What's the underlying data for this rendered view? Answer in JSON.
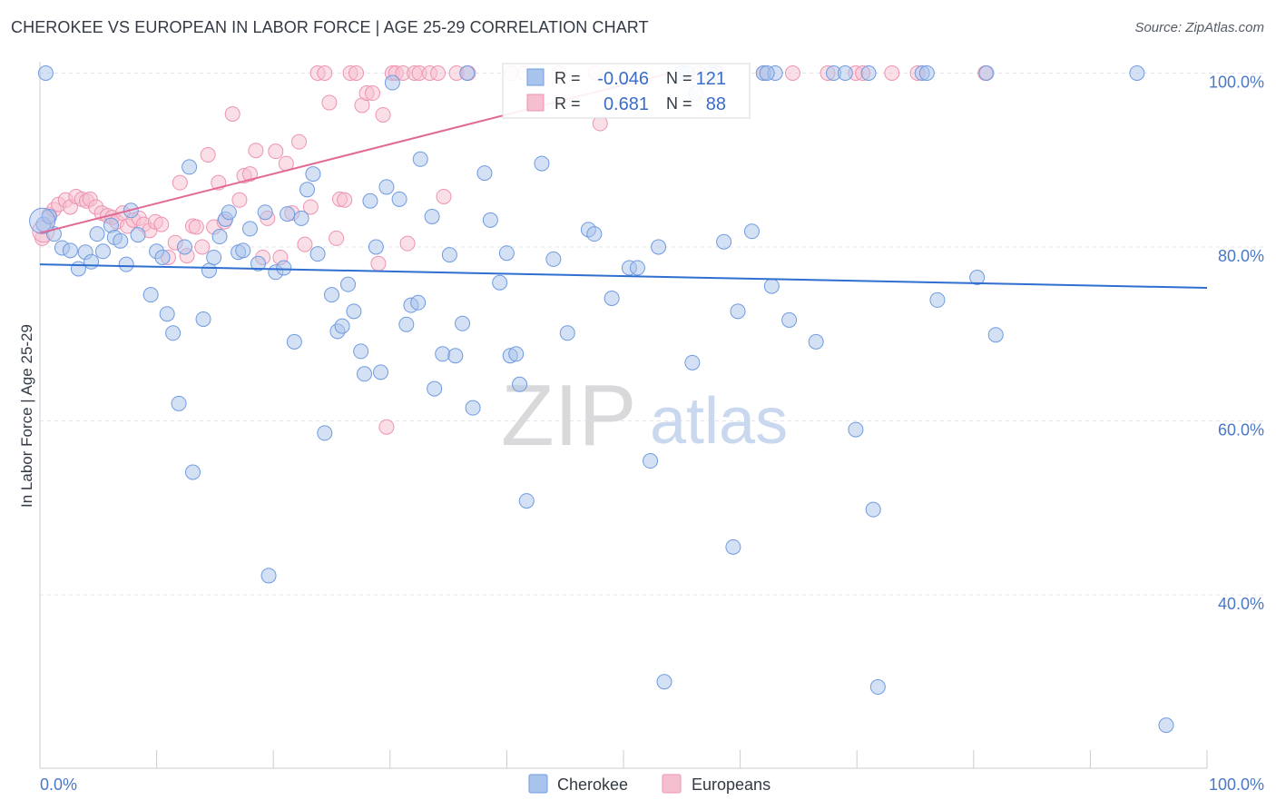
{
  "title": "CHEROKEE VS EUROPEAN IN LABOR FORCE | AGE 25-29 CORRELATION CHART",
  "source": "Source: ZipAtlas.com",
  "watermark": {
    "zip": "ZIP",
    "atlas": "atlas"
  },
  "colors": {
    "cherokee_fill": "#a9c4ec",
    "cherokee_stroke": "#6f9be0",
    "cherokee_line": "#2f6fd0",
    "europeans_fill": "#f6bfd0",
    "europeans_stroke": "#ee93b1",
    "europeans_line": "#e06a94",
    "tick_text": "#4a78c8",
    "grid": "#e3e5ea"
  },
  "chart_data": {
    "type": "scatter",
    "title": "CHEROKEE VS EUROPEAN IN LABOR FORCE | AGE 25-29 CORRELATION CHART",
    "xlabel": "",
    "ylabel": "In Labor Force | Age 25-29",
    "xlim": [
      0,
      100
    ],
    "ylim": [
      20,
      102
    ],
    "x_tick_labels": [
      "0.0%",
      "100.0%"
    ],
    "y_ticks": [
      40,
      60,
      80,
      100
    ],
    "y_tick_labels": [
      "40.0%",
      "60.0%",
      "80.0%",
      "100.0%"
    ],
    "grid": "horizontal dashed",
    "legend_position": "bottom-center",
    "stats_box": [
      {
        "series": "Cherokee",
        "r_label": "R =",
        "r": "-0.046",
        "n_label": "N =",
        "n": "121"
      },
      {
        "series": "Europeans",
        "r_label": "R =",
        "r": "0.681",
        "n_label": "N =",
        "n": "88"
      }
    ],
    "series": [
      {
        "name": "Cherokee",
        "trend": {
          "x": [
            0,
            100
          ],
          "y": [
            78.0,
            75.3
          ]
        },
        "points": [
          [
            0.3,
            82.6
          ],
          [
            0.8,
            83.5
          ],
          [
            1.2,
            81.5
          ],
          [
            1.9,
            79.9
          ],
          [
            2.6,
            79.6
          ],
          [
            3.3,
            77.5
          ],
          [
            3.9,
            79.4
          ],
          [
            4.4,
            78.3
          ],
          [
            4.9,
            81.5
          ],
          [
            5.4,
            79.5
          ],
          [
            6.1,
            82.5
          ],
          [
            6.4,
            81.1
          ],
          [
            6.9,
            80.7
          ],
          [
            7.4,
            78.0
          ],
          [
            7.8,
            84.2
          ],
          [
            8.4,
            81.4
          ],
          [
            9.5,
            74.5
          ],
          [
            10.0,
            79.5
          ],
          [
            10.5,
            78.8
          ],
          [
            10.9,
            72.3
          ],
          [
            11.4,
            70.1
          ],
          [
            11.9,
            62.0
          ],
          [
            12.4,
            80.0
          ],
          [
            12.8,
            89.2
          ],
          [
            13.1,
            54.1
          ],
          [
            14.0,
            71.7
          ],
          [
            14.5,
            77.3
          ],
          [
            14.9,
            78.8
          ],
          [
            15.4,
            81.2
          ],
          [
            15.9,
            83.2
          ],
          [
            16.2,
            84.0
          ],
          [
            17.0,
            79.4
          ],
          [
            17.4,
            79.6
          ],
          [
            18.0,
            82.1
          ],
          [
            18.7,
            78.1
          ],
          [
            19.3,
            84.0
          ],
          [
            19.6,
            42.2
          ],
          [
            20.2,
            77.1
          ],
          [
            20.9,
            77.6
          ],
          [
            21.2,
            83.8
          ],
          [
            21.8,
            69.1
          ],
          [
            22.4,
            83.3
          ],
          [
            22.9,
            86.6
          ],
          [
            23.4,
            88.4
          ],
          [
            23.8,
            79.2
          ],
          [
            24.4,
            58.6
          ],
          [
            25.0,
            74.5
          ],
          [
            25.5,
            70.3
          ],
          [
            25.9,
            70.9
          ],
          [
            26.4,
            75.7
          ],
          [
            26.9,
            72.6
          ],
          [
            27.5,
            68.0
          ],
          [
            27.8,
            65.4
          ],
          [
            28.3,
            85.3
          ],
          [
            28.8,
            80.0
          ],
          [
            29.2,
            65.6
          ],
          [
            29.7,
            86.9
          ],
          [
            30.2,
            98.9
          ],
          [
            30.8,
            85.5
          ],
          [
            31.4,
            71.1
          ],
          [
            31.8,
            73.3
          ],
          [
            32.4,
            73.6
          ],
          [
            32.6,
            90.1
          ],
          [
            33.6,
            83.5
          ],
          [
            33.8,
            63.7
          ],
          [
            34.5,
            67.7
          ],
          [
            35.1,
            79.1
          ],
          [
            35.6,
            67.5
          ],
          [
            36.2,
            71.2
          ],
          [
            36.6,
            100.0
          ],
          [
            37.1,
            61.5
          ],
          [
            38.1,
            88.5
          ],
          [
            38.6,
            83.1
          ],
          [
            39.4,
            75.9
          ],
          [
            40.0,
            79.3
          ],
          [
            40.3,
            67.5
          ],
          [
            40.8,
            67.7
          ],
          [
            41.1,
            64.2
          ],
          [
            41.7,
            50.8
          ],
          [
            43.0,
            89.6
          ],
          [
            44.0,
            78.6
          ],
          [
            45.2,
            70.1
          ],
          [
            47.0,
            82.0
          ],
          [
            47.5,
            81.5
          ],
          [
            49.0,
            74.1
          ],
          [
            50.5,
            77.6
          ],
          [
            51.2,
            77.6
          ],
          [
            52.3,
            55.4
          ],
          [
            53.0,
            80.0
          ],
          [
            53.5,
            30.0
          ],
          [
            55.0,
            100.0
          ],
          [
            55.5,
            100.0
          ],
          [
            55.9,
            66.7
          ],
          [
            56.2,
            97.7
          ],
          [
            57.5,
            100.0
          ],
          [
            58.0,
            100.0
          ],
          [
            58.6,
            80.6
          ],
          [
            59.4,
            45.5
          ],
          [
            59.8,
            72.6
          ],
          [
            61.0,
            81.8
          ],
          [
            62.0,
            100.0
          ],
          [
            62.7,
            75.5
          ],
          [
            63.0,
            100.0
          ],
          [
            64.2,
            71.6
          ],
          [
            66.5,
            69.1
          ],
          [
            68.0,
            100.0
          ],
          [
            69.0,
            100.0
          ],
          [
            69.9,
            59.0
          ],
          [
            71.0,
            100.0
          ],
          [
            71.4,
            49.8
          ],
          [
            71.8,
            29.4
          ],
          [
            75.6,
            100.0
          ],
          [
            76.0,
            100.0
          ],
          [
            76.9,
            73.9
          ],
          [
            80.3,
            76.5
          ],
          [
            81.1,
            100.0
          ],
          [
            81.9,
            69.9
          ],
          [
            94.0,
            100.0
          ],
          [
            96.5,
            25.0
          ],
          [
            0.5,
            100.0
          ],
          [
            62.3,
            100.0
          ]
        ]
      },
      {
        "name": "Europeans",
        "trend": {
          "x": [
            0,
            54
          ],
          "y": [
            81.6,
            100.0
          ]
        },
        "points": [
          [
            0.2,
            81.0
          ],
          [
            0.8,
            83.7
          ],
          [
            1.2,
            84.3
          ],
          [
            1.6,
            84.9
          ],
          [
            2.2,
            85.4
          ],
          [
            2.6,
            84.6
          ],
          [
            3.1,
            85.8
          ],
          [
            3.6,
            85.5
          ],
          [
            4.0,
            85.3
          ],
          [
            4.3,
            85.5
          ],
          [
            4.8,
            84.6
          ],
          [
            5.3,
            83.9
          ],
          [
            5.8,
            83.6
          ],
          [
            6.2,
            83.4
          ],
          [
            6.6,
            82.9
          ],
          [
            7.1,
            83.9
          ],
          [
            7.5,
            82.4
          ],
          [
            8.0,
            83.1
          ],
          [
            8.5,
            83.3
          ],
          [
            8.9,
            82.6
          ],
          [
            9.4,
            81.9
          ],
          [
            9.9,
            82.9
          ],
          [
            10.4,
            82.6
          ],
          [
            11.0,
            78.8
          ],
          [
            11.6,
            80.5
          ],
          [
            12.0,
            87.4
          ],
          [
            12.6,
            79.0
          ],
          [
            13.1,
            82.4
          ],
          [
            13.4,
            82.3
          ],
          [
            13.9,
            80.0
          ],
          [
            14.4,
            90.6
          ],
          [
            14.9,
            82.3
          ],
          [
            15.3,
            87.4
          ],
          [
            15.8,
            82.9
          ],
          [
            16.5,
            95.3
          ],
          [
            17.1,
            85.4
          ],
          [
            17.5,
            88.2
          ],
          [
            18.0,
            88.4
          ],
          [
            18.5,
            91.1
          ],
          [
            19.1,
            78.8
          ],
          [
            19.5,
            83.3
          ],
          [
            20.2,
            91.0
          ],
          [
            20.6,
            78.8
          ],
          [
            21.1,
            89.6
          ],
          [
            21.6,
            83.9
          ],
          [
            22.2,
            92.1
          ],
          [
            22.7,
            80.3
          ],
          [
            23.2,
            84.6
          ],
          [
            23.8,
            100.0
          ],
          [
            24.4,
            100.0
          ],
          [
            24.8,
            96.6
          ],
          [
            25.4,
            81.0
          ],
          [
            25.7,
            85.5
          ],
          [
            26.1,
            85.4
          ],
          [
            26.6,
            100.0
          ],
          [
            27.1,
            100.0
          ],
          [
            27.6,
            96.3
          ],
          [
            28.0,
            97.7
          ],
          [
            28.5,
            97.7
          ],
          [
            29.0,
            78.1
          ],
          [
            29.4,
            95.2
          ],
          [
            29.7,
            59.3
          ],
          [
            30.2,
            100.0
          ],
          [
            30.5,
            100.0
          ],
          [
            31.1,
            100.0
          ],
          [
            31.5,
            80.4
          ],
          [
            32.1,
            100.0
          ],
          [
            32.5,
            100.0
          ],
          [
            33.4,
            100.0
          ],
          [
            34.1,
            100.0
          ],
          [
            34.6,
            85.8
          ],
          [
            35.7,
            100.0
          ],
          [
            36.7,
            100.0
          ],
          [
            40.4,
            100.0
          ],
          [
            41.5,
            100.0
          ],
          [
            44.5,
            100.0
          ],
          [
            47.6,
            100.0
          ],
          [
            48.0,
            94.2
          ],
          [
            56.5,
            100.0
          ],
          [
            58.0,
            100.0
          ],
          [
            62.0,
            100.0
          ],
          [
            64.5,
            100.0
          ],
          [
            67.5,
            100.0
          ],
          [
            69.9,
            100.0
          ],
          [
            70.5,
            100.0
          ],
          [
            73.0,
            100.0
          ],
          [
            75.2,
            100.0
          ],
          [
            81.0,
            100.0
          ]
        ]
      }
    ]
  },
  "legend": {
    "items": [
      "Cherokee",
      "Europeans"
    ]
  }
}
